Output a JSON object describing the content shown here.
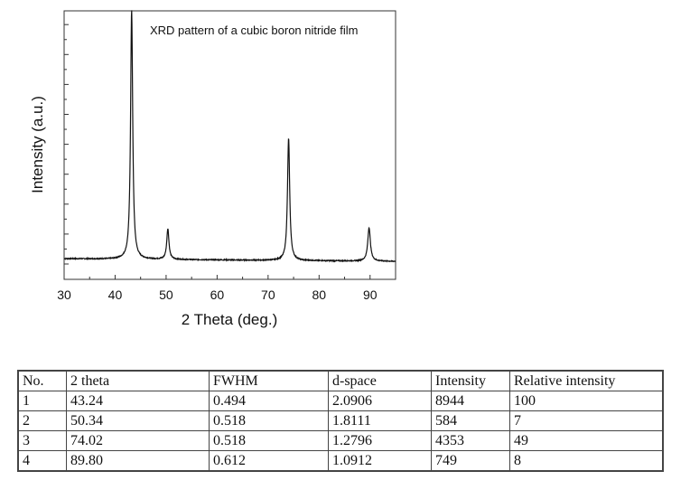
{
  "chart_data": {
    "type": "line",
    "title": "XRD pattern of a cubic boron nitride film",
    "xlabel": "2 Theta (deg.)",
    "ylabel": "Intensity (a.u.)",
    "xlim": [
      30,
      95
    ],
    "x_ticks": [
      "30",
      "40",
      "50",
      "60",
      "70",
      "80",
      "90"
    ],
    "y_tick_labels": false,
    "grid": false,
    "line_color": "#111111",
    "baseline": {
      "start": 7.7,
      "end": 6.7
    },
    "peaks": [
      {
        "two_theta": 43.24,
        "height": 92.9,
        "fwhm": 0.494
      },
      {
        "two_theta": 50.34,
        "height": 11.4,
        "fwhm": 0.518
      },
      {
        "two_theta": 74.02,
        "height": 45.5,
        "fwhm": 0.518
      },
      {
        "two_theta": 89.8,
        "height": 12.5,
        "fwhm": 0.612
      }
    ],
    "ylim": [
      0,
      100
    ]
  },
  "table": {
    "headers": [
      "No.",
      "2 theta",
      "FWHM",
      "d-space",
      "Intensity",
      "Relative intensity"
    ],
    "rows": [
      [
        "1",
        "43.24",
        "0.494",
        "2.0906",
        "8944",
        "100"
      ],
      [
        "2",
        "50.34",
        "0.518",
        "1.8111",
        "584",
        "7"
      ],
      [
        "3",
        "74.02",
        "0.518",
        "1.2796",
        "4353",
        "49"
      ],
      [
        "4",
        "89.80",
        "0.612",
        "1.0912",
        "749",
        "8"
      ]
    ]
  }
}
